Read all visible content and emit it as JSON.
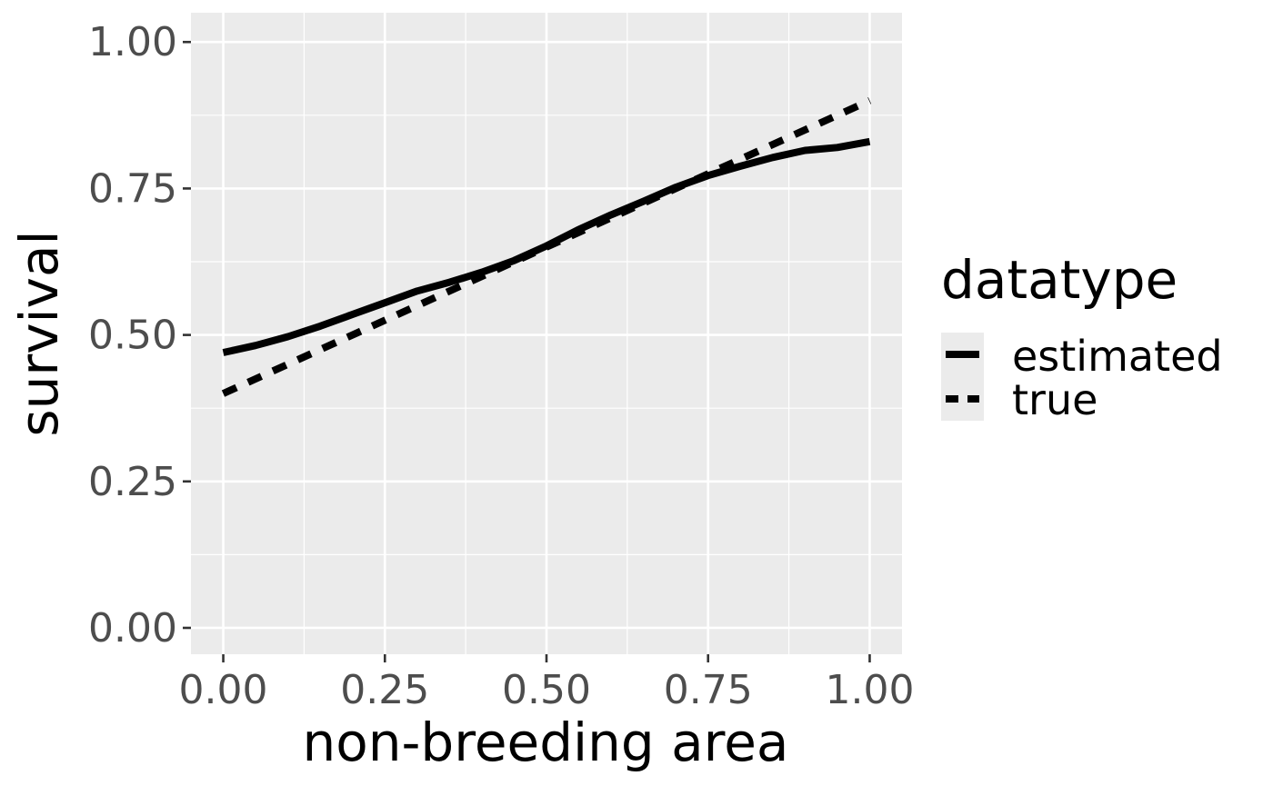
{
  "chart_data": {
    "type": "line",
    "title": "",
    "xlabel": "non-breeding area",
    "ylabel": "survival",
    "xlim": [
      -0.05,
      1.05
    ],
    "ylim": [
      -0.045,
      1.05
    ],
    "x_ticks": [
      0.0,
      0.25,
      0.5,
      0.75,
      1.0
    ],
    "x_tick_labels": [
      "0.00",
      "0.25",
      "0.50",
      "0.75",
      "1.00"
    ],
    "y_ticks": [
      0.0,
      0.25,
      0.5,
      0.75,
      1.0
    ],
    "y_tick_labels": [
      "0.00",
      "0.25",
      "0.50",
      "0.75",
      "1.00"
    ],
    "grid": true,
    "legend": {
      "title": "datatype",
      "position": "right",
      "entries": [
        "estimated",
        "true"
      ]
    },
    "colors": {
      "panel": "#ebebeb",
      "grid": "#ffffff",
      "line": "#000000",
      "tick_text": "#4d4d4d",
      "legend_key_bg": "#ebebeb"
    },
    "series": [
      {
        "name": "estimated",
        "linetype": "solid",
        "x": [
          0.0,
          0.05,
          0.1,
          0.15,
          0.2,
          0.25,
          0.3,
          0.35,
          0.4,
          0.45,
          0.5,
          0.55,
          0.6,
          0.65,
          0.7,
          0.75,
          0.8,
          0.85,
          0.9,
          0.95,
          1.0
        ],
        "y": [
          0.47,
          0.482,
          0.497,
          0.515,
          0.535,
          0.555,
          0.575,
          0.59,
          0.607,
          0.627,
          0.652,
          0.68,
          0.705,
          0.728,
          0.752,
          0.772,
          0.788,
          0.803,
          0.815,
          0.82,
          0.83
        ]
      },
      {
        "name": "true",
        "linetype": "dashed",
        "x": [
          0.0,
          1.0
        ],
        "y": [
          0.4,
          0.9
        ]
      }
    ]
  }
}
